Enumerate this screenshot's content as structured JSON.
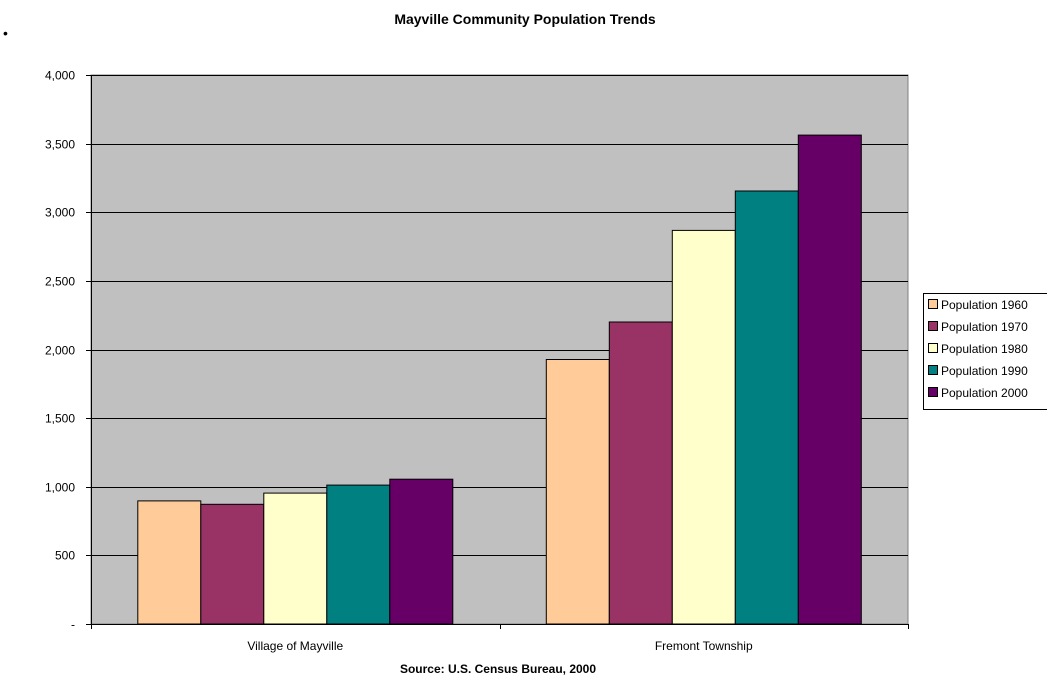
{
  "chart_data": {
    "type": "bar",
    "title": "Mayville Community Population Trends",
    "source": "Source: U.S. Census Bureau, 2000",
    "categories": [
      "Village of Mayville",
      "Fremont Township"
    ],
    "series": [
      {
        "name": "Population 1960",
        "color": "#FFCC99",
        "values": [
          897,
          1927
        ]
      },
      {
        "name": "Population 1970",
        "color": "#993366",
        "values": [
          872,
          2200
        ]
      },
      {
        "name": "Population 1980",
        "color": "#FFFFCC",
        "values": [
          954,
          2868
        ]
      },
      {
        "name": "Population 1990",
        "color": "#008080",
        "values": [
          1012,
          3155
        ]
      },
      {
        "name": "Population 2000",
        "color": "#660066",
        "values": [
          1055,
          3562
        ]
      }
    ],
    "ylim": [
      0,
      4000
    ],
    "yticks": [
      0,
      500,
      1000,
      1500,
      2000,
      2500,
      3000,
      3500,
      4000
    ],
    "ytick_labels": [
      "-",
      "500",
      "1,000",
      "1,500",
      "2,000",
      "2,500",
      "3,000",
      "3,500",
      "4,000"
    ],
    "grid": true,
    "plot_background": "#C0C0C0",
    "legend_position": "right"
  },
  "page": {
    "bullet": "•"
  }
}
